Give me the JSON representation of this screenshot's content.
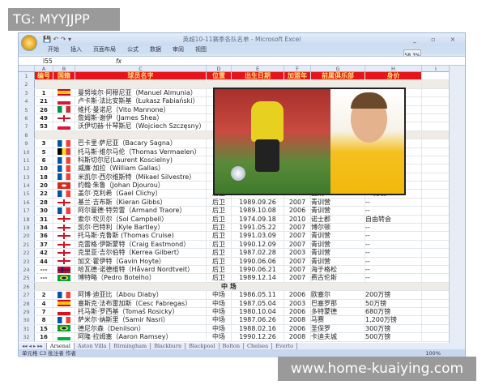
{
  "watermarks": {
    "top": "TG: MYYJJPP",
    "bottom": "www.home-kuaiying.com"
  },
  "window": {
    "title": "英超10-11赛季各队名单 - Microsoft Excel",
    "controls": "_ ▫ ×"
  },
  "ribbon": {
    "tabs": [
      "开始",
      "插入",
      "页面布局",
      "公式",
      "数据",
      "审阅",
      "视图"
    ],
    "zoom_tooltip": "58.3%"
  },
  "formula_bar": {
    "name_box": "I55",
    "fx": "fx",
    "value": ""
  },
  "columns": [
    "A",
    "B",
    "C",
    "D",
    "E",
    "F",
    "G",
    "H",
    "I"
  ],
  "header_row": [
    "编号",
    "国籍",
    "球员名字",
    "位置",
    "出生日期",
    "加盟年",
    "前属俱乐部",
    "身价"
  ],
  "rows": [
    {
      "r": 2,
      "type": "section",
      "label": ""
    },
    {
      "r": 3,
      "num": "1",
      "flag": "es",
      "name": "曼努埃尔·阿穆尼亚（Manuel Almunia）"
    },
    {
      "r": 4,
      "num": "21",
      "flag": "pl",
      "name": "卢卡斯·法比安斯基（Łukasz Fabiański）"
    },
    {
      "r": 5,
      "num": "26",
      "flag": "it",
      "name": "维托·曼诺尼（Vito Mannone）"
    },
    {
      "r": 6,
      "num": "49",
      "flag": "en",
      "name": "詹姆斯·谢伊（James Shea）"
    },
    {
      "r": 7,
      "num": "53",
      "flag": "pl",
      "name": "沃伊切赫·什琴斯尼（Wojciech Szczęsny）"
    },
    {
      "r": 8,
      "type": "section",
      "label": ""
    },
    {
      "r": 9,
      "num": "3",
      "flag": "fr",
      "name": "巴卡里·萨尼亚（Bacary Sagna）"
    },
    {
      "r": 10,
      "num": "5",
      "flag": "be",
      "name": "托马斯·维尔马伦（Thomas Vermaelen）"
    },
    {
      "r": 11,
      "num": "6",
      "flag": "fr",
      "name": "科斯切尔尼(Laurent Koscielny)"
    },
    {
      "r": 12,
      "num": "10",
      "flag": "fr",
      "name": "威廉·加拉（William Gallas）"
    },
    {
      "r": 13,
      "num": "18",
      "flag": "fr",
      "name": "米凯尔·西尔维斯特（Mikael Silvestre）"
    },
    {
      "r": 14,
      "num": "20",
      "flag": "ch",
      "name": "约翰·朱鲁（Johan Djourou）"
    },
    {
      "r": 15,
      "num": "22",
      "flag": "fr",
      "name": "盖尔·克利希（Gael Clichy）",
      "pos": "后卫",
      "dob": "1985.07.26",
      "year": "2003",
      "club": "戛纳",
      "value": "25万镑"
    },
    {
      "r": 16,
      "num": "28",
      "flag": "en",
      "name": "基兰·吉布斯（Kieran Gibbs）",
      "pos": "后卫",
      "dob": "1989.09.26",
      "year": "2007",
      "club": "青训营",
      "value": "--"
    },
    {
      "r": 17,
      "num": "30",
      "flag": "fr",
      "name": "阿尔曼德·特劳雷（Armand Traore）",
      "pos": "后卫",
      "dob": "1989.10.08",
      "year": "2006",
      "club": "青训营",
      "value": "--"
    },
    {
      "r": 18,
      "num": "31",
      "flag": "en",
      "name": "索尔·坎贝尔（Sol Campbell）",
      "pos": "后卫",
      "dob": "1974.09.18",
      "year": "2010",
      "club": "诺士郡",
      "value": "自由转会"
    },
    {
      "r": 19,
      "num": "34",
      "flag": "en",
      "name": "凯尔·巴特利（Kyle Bartley）",
      "pos": "后卫",
      "dob": "1991.05.22",
      "year": "2007",
      "club": "博尔顿",
      "value": "--"
    },
    {
      "r": 20,
      "num": "36",
      "flag": "en",
      "name": "托马斯·克鲁斯 (Thomas Cruise)",
      "pos": "后卫",
      "dob": "1991.03.09",
      "year": "2007",
      "club": "青训营",
      "value": "--"
    },
    {
      "r": 21,
      "num": "37",
      "flag": "en",
      "name": "克雷格·伊斯蒙特（Craig Eastmond）",
      "pos": "后卫",
      "dob": "1990.12.09",
      "year": "2007",
      "club": "青训营",
      "value": "--"
    },
    {
      "r": 22,
      "num": "42",
      "flag": "en",
      "name": "克里亚·吉尔伯特（Kerrea Gilbert）",
      "pos": "后卫",
      "dob": "1987.02.28",
      "year": "2003",
      "club": "青训营",
      "value": "--"
    },
    {
      "r": 23,
      "num": "44",
      "flag": "en",
      "name": "加文·霍伊特（Gavin Hoyte）",
      "pos": "后卫",
      "dob": "1990.06.06",
      "year": "2007",
      "club": "青训营",
      "value": "--"
    },
    {
      "r": 24,
      "num": "---",
      "flag": "no",
      "name": "哈瓦德·诺德维特（Håvard Nordtveit）",
      "pos": "后卫",
      "dob": "1990.06.21",
      "year": "2007",
      "club": "海于格松",
      "value": "--"
    },
    {
      "r": 25,
      "num": "---",
      "flag": "br",
      "name": "博特略（Pedro Botelho）",
      "pos": "后卫",
      "dob": "1989.12.14",
      "year": "2007",
      "club": "费古伦斯",
      "value": "--"
    },
    {
      "r": 26,
      "type": "section",
      "label": "中 场"
    },
    {
      "r": 27,
      "num": "2",
      "flag": "fr",
      "name": "阿博·迪亚比（Abou Diaby）",
      "pos": "中场",
      "dob": "1986.05.11",
      "year": "2006",
      "club": "欧塞尔",
      "value": "200万镑"
    },
    {
      "r": 28,
      "num": "4",
      "flag": "es",
      "name": "塞斯克·法布雷加斯（Cesc Fabregas）",
      "pos": "中场",
      "dob": "1987.05.04",
      "year": "2003",
      "club": "巴塞罗那",
      "value": "50万镑"
    },
    {
      "r": 29,
      "num": "7",
      "flag": "cz",
      "name": "托马斯·罗西基（Tomaš Rosicky）",
      "pos": "中场",
      "dob": "1980.10.04",
      "year": "2006",
      "club": "多特蒙德",
      "value": "680万镑"
    },
    {
      "r": 30,
      "num": "8",
      "flag": "fr",
      "name": "萨米尔·纳斯里（Samir Nasri）",
      "pos": "中场",
      "dob": "1987.06.26",
      "year": "2008",
      "club": "马赛",
      "value": "1,200万镑"
    },
    {
      "r": 31,
      "num": "15",
      "flag": "br",
      "name": "德尼尔森（Denilson）",
      "pos": "中场",
      "dob": "1988.02.16",
      "year": "2006",
      "club": "圣保罗",
      "value": "300万镑"
    },
    {
      "r": 32,
      "num": "16",
      "flag": "wales",
      "name": "阿隆·拉姆塞（Aaron Ramsey）",
      "pos": "中场",
      "dob": "1990.12.26",
      "year": "2008",
      "club": "卡迪夫城",
      "value": "500万镑"
    }
  ],
  "sheet_tabs": [
    "Arsenal",
    "Aston Villa",
    "Birmingham",
    "Blackburn",
    "Blackpool",
    "Bolton",
    "Chelsea",
    "Everto"
  ],
  "status": {
    "text": "单元格 C3 批注者 作者",
    "zoom": "100%"
  },
  "colors": {
    "header_bg": "#e8141c",
    "header_text": "#ffe36a"
  }
}
